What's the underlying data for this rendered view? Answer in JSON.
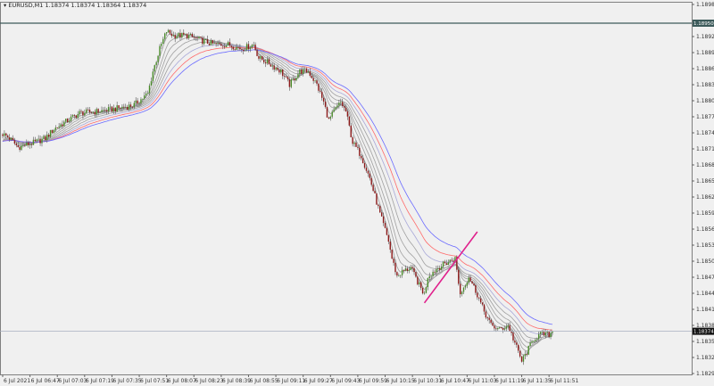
{
  "header": {
    "menu_icon": "triangle-down-icon",
    "symbol": "EURUSD,M1",
    "quote": "1.18374 1.18374 1.18364 1.18374"
  },
  "chart_data": {
    "type": "candlestick",
    "symbol": "EURUSD",
    "timeframe": "M1",
    "ylim": [
      1.18295,
      1.18985
    ],
    "y_ticks": [
      "1.18985",
      "1.18925",
      "1.18895",
      "1.18865",
      "1.18835",
      "1.18805",
      "1.18775",
      "1.18745",
      "1.18715",
      "1.18685",
      "1.18655",
      "1.18625",
      "1.18595",
      "1.18565",
      "1.18535",
      "1.18505",
      "1.18475",
      "1.18445",
      "1.18415",
      "1.18385",
      "1.18355",
      "1.18325",
      "1.18295"
    ],
    "x_ticks": [
      "6 Jul 2021",
      "6 Jul 06:47",
      "6 Jul 07:03",
      "6 Jul 07:19",
      "6 Jul 07:35",
      "6 Jul 07:51",
      "6 Jul 08:07",
      "6 Jul 08:23",
      "6 Jul 08:39",
      "6 Jul 08:55",
      "6 Jul 09:11",
      "6 Jul 09:27",
      "6 Jul 09:43",
      "6 Jul 09:59",
      "6 Jul 10:15",
      "6 Jul 10:31",
      "6 Jul 10:47",
      "6 Jul 11:03",
      "6 Jul 11:19",
      "6 Jul 11:35",
      "6 Jul 11:51"
    ],
    "start_time": "06:31",
    "price_path": [
      [
        "06:31",
        1.18743
      ],
      [
        "06:35",
        1.18735
      ],
      [
        "06:40",
        1.18718
      ],
      [
        "06:45",
        1.18723
      ],
      [
        "06:50",
        1.18727
      ],
      [
        "06:56",
        1.18735
      ],
      [
        "07:01",
        1.18752
      ],
      [
        "07:09",
        1.18768
      ],
      [
        "07:16",
        1.18782
      ],
      [
        "07:27",
        1.18785
      ],
      [
        "07:37",
        1.1879
      ],
      [
        "07:48",
        1.18797
      ],
      [
        "07:56",
        1.18818
      ],
      [
        "07:59",
        1.1886
      ],
      [
        "08:03",
        1.18902
      ],
      [
        "08:07",
        1.18935
      ],
      [
        "08:11",
        1.18927
      ],
      [
        "08:19",
        1.18927
      ],
      [
        "08:27",
        1.18918
      ],
      [
        "08:35",
        1.1891
      ],
      [
        "08:43",
        1.1891
      ],
      [
        "08:51",
        1.18902
      ],
      [
        "08:58",
        1.1891
      ],
      [
        "09:01",
        1.18885
      ],
      [
        "09:06",
        1.18877
      ],
      [
        "09:14",
        1.1886
      ],
      [
        "09:19",
        1.18835
      ],
      [
        "09:25",
        1.1886
      ],
      [
        "09:30",
        1.1886
      ],
      [
        "09:35",
        1.18835
      ],
      [
        "09:39",
        1.18802
      ],
      [
        "09:42",
        1.18768
      ],
      [
        "09:45",
        1.18785
      ],
      [
        "09:49",
        1.18802
      ],
      [
        "09:52",
        1.18785
      ],
      [
        "09:56",
        1.18727
      ],
      [
        "10:01",
        1.18702
      ],
      [
        "10:06",
        1.1866
      ],
      [
        "10:12",
        1.18593
      ],
      [
        "10:17",
        1.18543
      ],
      [
        "10:19",
        1.1851
      ],
      [
        "10:22",
        1.18477
      ],
      [
        "10:25",
        1.18485
      ],
      [
        "10:30",
        1.18493
      ],
      [
        "10:35",
        1.1846
      ],
      [
        "10:38",
        1.18443
      ],
      [
        "10:40",
        1.18477
      ],
      [
        "10:46",
        1.18493
      ],
      [
        "10:51",
        1.18502
      ],
      [
        "10:56",
        1.1851
      ],
      [
        "10:59",
        1.18443
      ],
      [
        "11:04",
        1.18477
      ],
      [
        "11:09",
        1.18443
      ],
      [
        "11:12",
        1.18418
      ],
      [
        "11:17",
        1.18385
      ],
      [
        "11:22",
        1.18377
      ],
      [
        "11:27",
        1.18385
      ],
      [
        "11:31",
        1.18352
      ],
      [
        "11:35",
        1.18318
      ],
      [
        "11:38",
        1.18335
      ],
      [
        "11:42",
        1.1836
      ],
      [
        "11:46",
        1.18368
      ],
      [
        "11:51",
        1.18368
      ],
      [
        "11:53",
        1.18374
      ]
    ],
    "moving_averages": [
      {
        "period": 4,
        "color": "#a0a0a0"
      },
      {
        "period": 8,
        "color": "#a0a0a0"
      },
      {
        "period": 12,
        "color": "#a0a0a0"
      },
      {
        "period": 17,
        "color": "#a0a0a0"
      },
      {
        "period": 23,
        "color": "#a0a0a0"
      },
      {
        "period": 30,
        "color": "#a8a8d8"
      },
      {
        "period": 38,
        "color": "#ff6a6a"
      },
      {
        "period": 48,
        "color": "#6a6aff"
      }
    ],
    "trendline": {
      "from": [
        "10:38",
        1.18427
      ],
      "to": [
        "11:09",
        1.1856
      ],
      "color": "#e0208c"
    },
    "hlines": [
      {
        "price": 1.1895,
        "label": "1.18950",
        "color": "#3c5a5a"
      },
      {
        "price": 1.18374,
        "label": "1.18374",
        "color": "#a8b0c0"
      }
    ],
    "colors": {
      "bull": "#4a8c2a",
      "bear": "#8c1a1a",
      "wick": "#555555",
      "background": "#f0f0f0",
      "frame": "#808080"
    }
  }
}
